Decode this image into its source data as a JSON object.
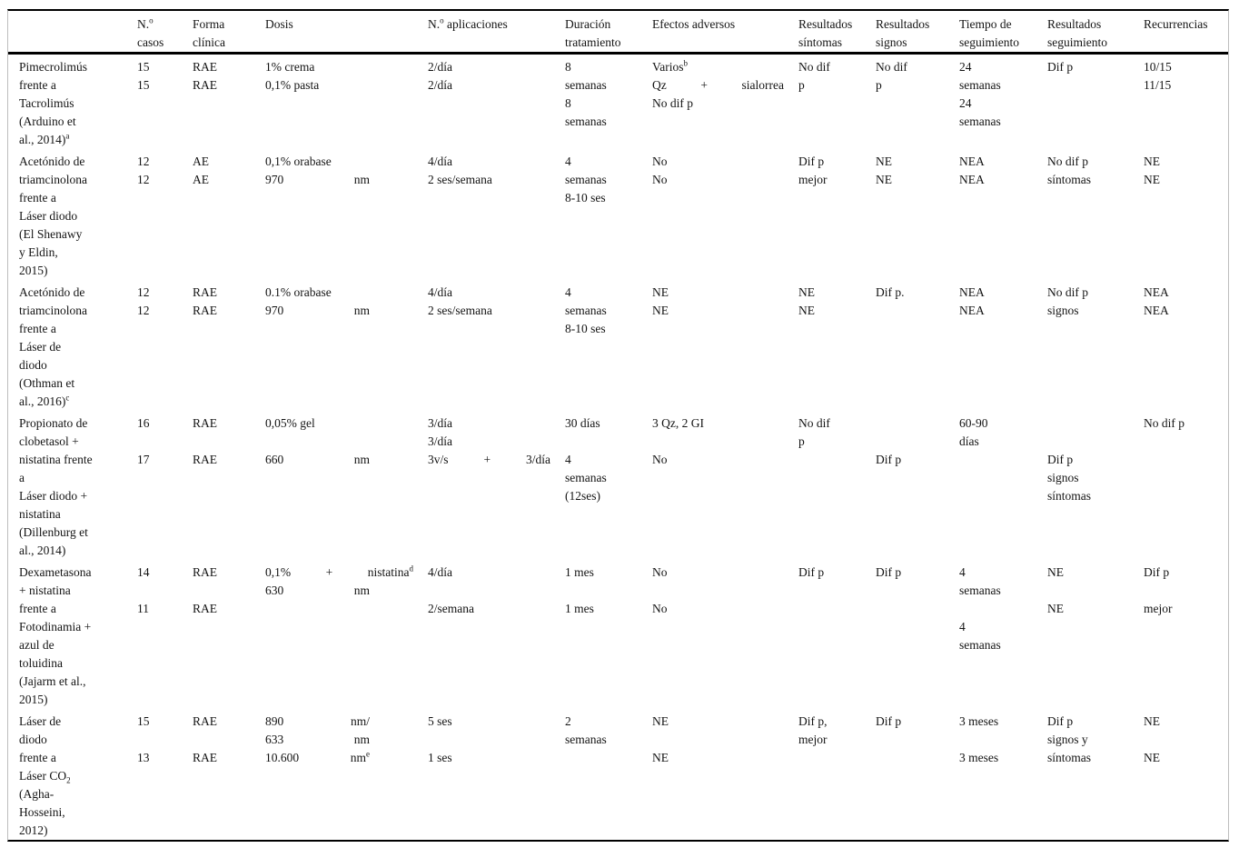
{
  "table": {
    "columns": [
      {
        "key": "study",
        "header_lines": [
          ""
        ]
      },
      {
        "key": "n_casos",
        "header_lines": [
          "N.^{o}",
          "casos"
        ]
      },
      {
        "key": "forma_clinica",
        "header_lines": [
          "Forma",
          "clínica"
        ]
      },
      {
        "key": "dosis",
        "header_lines": [
          "Dosis"
        ]
      },
      {
        "key": "aplicaciones",
        "header_lines": [
          "N.^{o} aplicaciones"
        ]
      },
      {
        "key": "duracion",
        "header_lines": [
          "Duración",
          "tratamiento"
        ]
      },
      {
        "key": "efectos",
        "header_lines": [
          "Efectos adversos"
        ]
      },
      {
        "key": "res_sintomas",
        "header_lines": [
          "Resultados",
          "síntomas"
        ]
      },
      {
        "key": "res_signos",
        "header_lines": [
          "Resultados",
          "signos"
        ]
      },
      {
        "key": "tiempo",
        "header_lines": [
          "Tiempo de",
          "seguimiento"
        ]
      },
      {
        "key": "res_seguim",
        "header_lines": [
          "Resultados",
          "seguimiento"
        ]
      },
      {
        "key": "recurrencias",
        "header_lines": [
          "Recurrencias"
        ]
      }
    ],
    "rows": [
      {
        "cells": [
          [
            "Pimecrolimús",
            "frente a",
            "Tacrolimús",
            "(Arduino et",
            "al., 2014)^{a}"
          ],
          [
            "15",
            "15"
          ],
          [
            "RAE",
            "RAE"
          ],
          [
            "1% crema",
            "0,1% pasta"
          ],
          [
            "2/día",
            "2/día"
          ],
          [
            "8",
            "semanas",
            "8",
            "semanas"
          ],
          [
            "Varios^{b}",
            [
              "Qz",
              "+",
              "sialorrea"
            ],
            "No dif p"
          ],
          [
            "No dif",
            "p"
          ],
          [
            "No dif",
            "p"
          ],
          [
            "24",
            "semanas",
            "24",
            "semanas"
          ],
          [
            "Dif p"
          ],
          [
            "10/15",
            "11/15"
          ]
        ]
      },
      {
        "cells": [
          [
            "Acetónido de",
            "triamcinolona",
            "frente a",
            "Láser diodo",
            "(El Shenawy",
            "y Eldin,",
            "2015)"
          ],
          [
            "12",
            "12"
          ],
          [
            "AE",
            "AE"
          ],
          [
            "0,1% orabase",
            [
              "970",
              "nm"
            ]
          ],
          [
            "4/día",
            "2 ses/semana"
          ],
          [
            "4",
            "semanas",
            "8-10 ses"
          ],
          [
            "No",
            "No"
          ],
          [
            "Dif p",
            "mejor"
          ],
          [
            "NE",
            "NE"
          ],
          [
            "NEA",
            "NEA"
          ],
          [
            "No dif p",
            "síntomas"
          ],
          [
            "NE",
            "NE"
          ]
        ]
      },
      {
        "cells": [
          [
            "Acetónido de",
            "triamcinolona",
            "frente a",
            "Láser de",
            "diodo",
            "(Othman et",
            "al., 2016)^{c}"
          ],
          [
            "12",
            "12"
          ],
          [
            "RAE",
            "RAE"
          ],
          [
            "0.1% orabase",
            [
              "970",
              "nm"
            ]
          ],
          [
            "4/día",
            "2 ses/semana"
          ],
          [
            "4",
            "semanas",
            "8-10 ses"
          ],
          [
            "NE",
            "NE"
          ],
          [
            "NE",
            "NE"
          ],
          [
            "Dif p."
          ],
          [
            "NEA",
            "NEA"
          ],
          [
            "No dif p",
            "signos"
          ],
          [
            "NEA",
            "NEA"
          ]
        ]
      },
      {
        "cells": [
          [
            "Propionato de",
            "clobetasol +",
            "nistatina frente",
            "a",
            "Láser diodo +",
            "nistatina",
            "(Dillenburg et",
            "al., 2014)"
          ],
          [
            "16",
            "",
            "17"
          ],
          [
            "RAE",
            "",
            "RAE"
          ],
          [
            "0,05% gel",
            "",
            [
              "660",
              "nm"
            ]
          ],
          [
            "3/día",
            "3/día",
            [
              "3v/s",
              "+",
              "3/día"
            ]
          ],
          [
            "30 días",
            "",
            "4",
            "semanas",
            "(12ses)"
          ],
          [
            "3 Qz, 2 GI",
            "",
            "No"
          ],
          [
            "No dif",
            "p"
          ],
          [
            "",
            "",
            "Dif p"
          ],
          [
            "60-90",
            "días"
          ],
          [
            "",
            "",
            "Dif p",
            "signos",
            "síntomas"
          ],
          [
            "No dif p"
          ]
        ]
      },
      {
        "cells": [
          [
            "Dexametasona",
            "+ nistatina",
            "frente a",
            "Fotodinamia +",
            "azul de",
            "toluidina",
            "(Jajarm et al.,",
            "2015)"
          ],
          [
            "14",
            "",
            "11"
          ],
          [
            "RAE",
            "",
            "RAE"
          ],
          [
            [
              "0,1%",
              "+",
              "nistatina^{d}"
            ],
            [
              "630",
              "nm"
            ]
          ],
          [
            "4/día",
            "",
            "2/semana"
          ],
          [
            "1 mes",
            "",
            "1 mes"
          ],
          [
            "No",
            "",
            "No"
          ],
          [
            "Dif p"
          ],
          [
            "Dif p"
          ],
          [
            "4",
            "semanas",
            "",
            "4",
            "semanas"
          ],
          [
            "NE",
            "",
            "NE"
          ],
          [
            "Dif p",
            "",
            "mejor"
          ]
        ]
      },
      {
        "cells": [
          [
            "Láser de",
            "diodo",
            "frente a",
            "Láser CO_{2}",
            "(Agha-",
            "Hosseini,",
            "2012)"
          ],
          [
            "15",
            "",
            "13"
          ],
          [
            "RAE",
            "",
            "RAE"
          ],
          [
            [
              "890",
              "nm/"
            ],
            [
              "633",
              "nm"
            ],
            [
              "10.600",
              "nm^{e}"
            ]
          ],
          [
            "5 ses",
            "",
            "1 ses"
          ],
          [
            "2",
            "semanas"
          ],
          [
            "NE",
            "",
            "NE"
          ],
          [
            "Dif p,",
            "mejor"
          ],
          [
            "Dif p"
          ],
          [
            "3 meses",
            "",
            "3 meses"
          ],
          [
            "Dif p",
            "signos y",
            "síntomas"
          ],
          [
            "NE",
            "",
            "NE"
          ]
        ]
      }
    ]
  }
}
